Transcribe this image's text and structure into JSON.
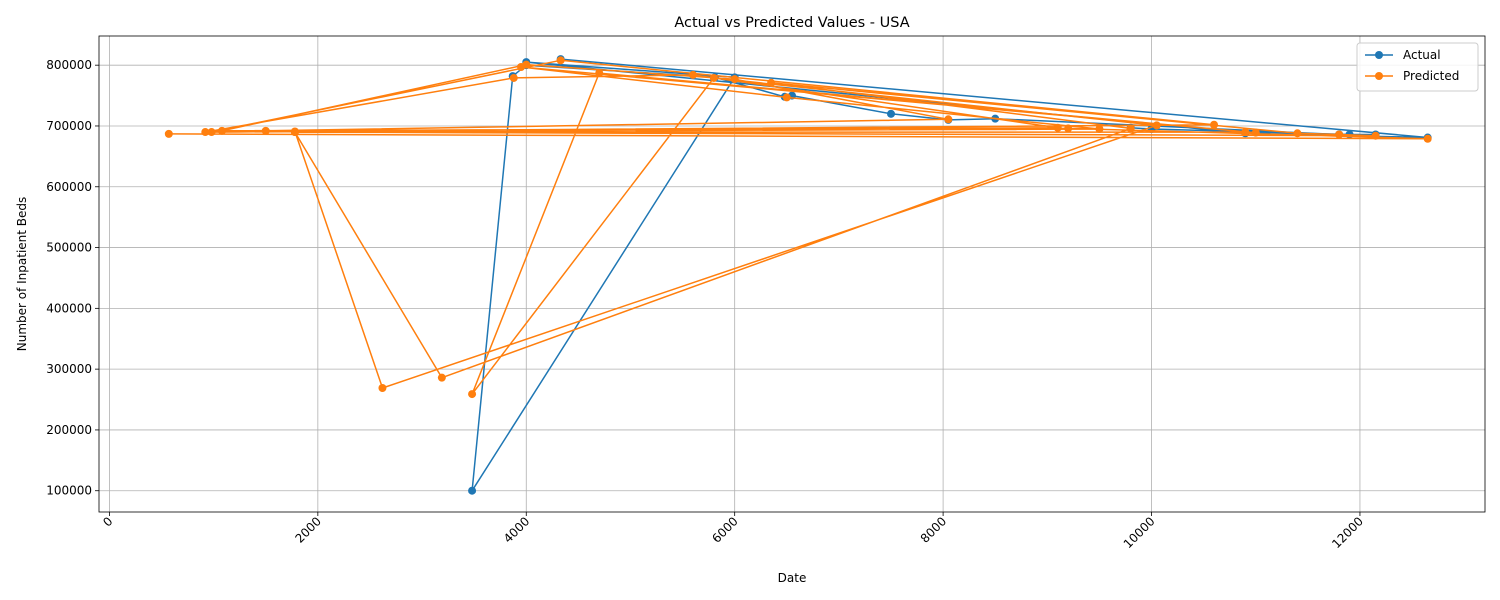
{
  "chart_data": {
    "type": "line",
    "title": "Actual vs Predicted Values - USA",
    "xlabel": "Date",
    "ylabel": "Number of Inpatient Beds",
    "xlim": [
      -100,
      13200
    ],
    "ylim": [
      65000,
      848000
    ],
    "x_ticks": [
      0,
      2000,
      4000,
      6000,
      8000,
      10000,
      12000
    ],
    "y_ticks": [
      100000,
      200000,
      300000,
      400000,
      500000,
      600000,
      700000,
      800000
    ],
    "grid": true,
    "legend_position": "upper-right",
    "series": [
      {
        "name": "Actual",
        "color": "#1f77b4",
        "x": [
          4330,
          12650,
          10900,
          4000,
          6000,
          3480,
          3870,
          4000,
          5810,
          6480,
          6550,
          7500,
          8050,
          8500,
          11800,
          12150,
          11900,
          10000,
          9800
        ],
        "y": [
          810000,
          681000,
          688000,
          805000,
          780000,
          100000,
          782000,
          800000,
          780000,
          748000,
          750000,
          720000,
          710000,
          712000,
          686000,
          686000,
          686000,
          695000,
          697000
        ]
      },
      {
        "name": "Predicted",
        "color": "#ff7f0e",
        "x": [
          570,
          12650,
          9200,
          980,
          4330,
          10600,
          920,
          3880,
          5600,
          9100,
          1080,
          4000,
          6000,
          8050,
          1500,
          1780,
          2620,
          10050,
          5800,
          3480,
          4700,
          11000,
          3950,
          6500,
          9500,
          1780,
          3190,
          9800,
          6350,
          11400,
          11800,
          12150,
          1780,
          10900
        ],
        "y": [
          687000,
          679000,
          696000,
          690000,
          808000,
          702000,
          690000,
          779000,
          784000,
          697000,
          692000,
          801000,
          777000,
          711000,
          692000,
          691000,
          269000,
          701000,
          779000,
          259000,
          787000,
          689000,
          797000,
          747000,
          695000,
          690000,
          286000,
          696000,
          771000,
          688000,
          686000,
          684000,
          690000,
          690000
        ]
      }
    ]
  }
}
